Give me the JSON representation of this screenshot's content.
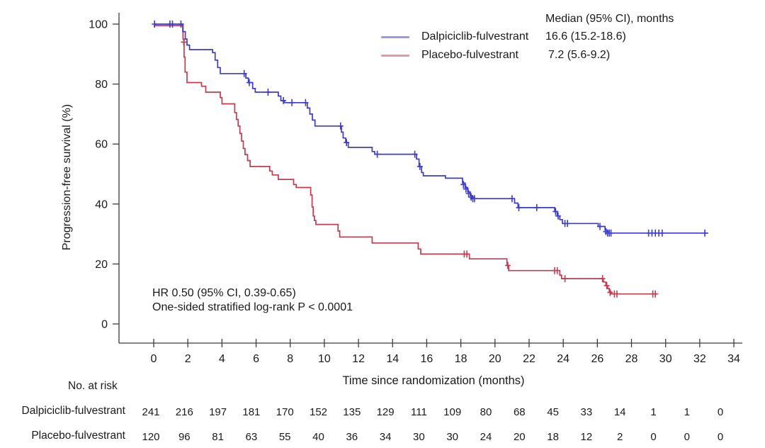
{
  "colors": {
    "dalpiciclib": "#3b3bd1",
    "placebo": "#c23b4e",
    "dalpiciclib_legend": "#9b9be4",
    "placebo_legend": "#e49aa3",
    "axis": "#3c3c3c",
    "text": "#1a1a1a"
  },
  "legend": {
    "header": "Median (95% CI), months",
    "series": [
      {
        "label": "Dalpiciclib-fulvestrant",
        "median": "16.6 (15.2-18.6)"
      },
      {
        "label": "Placebo-fulvestrant",
        "median": "7.2 (5.6-9.2)"
      }
    ]
  },
  "annotation": {
    "line1": "HR 0.50 (95% CI, 0.39-0.65)",
    "line2": "One-sided stratified log-rank P < 0.0001"
  },
  "risk_table": {
    "title": "No. at risk",
    "rows": [
      {
        "label": "Dalpiciclib-fulvestrant",
        "counts": [
          241,
          216,
          197,
          181,
          170,
          152,
          135,
          129,
          111,
          109,
          80,
          68,
          45,
          33,
          14,
          1,
          1,
          0
        ]
      },
      {
        "label": "Placebo-fulvestrant",
        "counts": [
          120,
          96,
          81,
          63,
          55,
          40,
          36,
          34,
          30,
          30,
          24,
          20,
          18,
          12,
          2,
          0,
          0,
          0
        ]
      }
    ]
  },
  "chart_data": {
    "type": "line",
    "subtype": "kaplan-meier-step",
    "title": "",
    "xlabel": "Time since randomization (months)",
    "ylabel": "Progression-free survival (%)",
    "xlim": [
      0,
      34
    ],
    "ylim": [
      0,
      100
    ],
    "xticks": [
      0,
      2,
      4,
      6,
      8,
      10,
      12,
      14,
      16,
      18,
      20,
      22,
      24,
      26,
      28,
      30,
      32,
      34
    ],
    "yticks": [
      0,
      20,
      40,
      60,
      80,
      100
    ],
    "grid": false,
    "legend_position": "top-right",
    "series": [
      {
        "name": "Dalpiciclib-fulvestrant",
        "color_key": "dalpiciclib",
        "steps": [
          [
            0,
            100
          ],
          [
            1.7,
            97.5
          ],
          [
            1.85,
            95
          ],
          [
            1.95,
            93
          ],
          [
            2.1,
            91.5
          ],
          [
            3.45,
            90.5
          ],
          [
            3.6,
            88
          ],
          [
            3.75,
            85.5
          ],
          [
            3.9,
            83.5
          ],
          [
            5.4,
            82
          ],
          [
            5.55,
            80.5
          ],
          [
            5.8,
            78.5
          ],
          [
            5.95,
            77.3
          ],
          [
            7.3,
            76
          ],
          [
            7.45,
            74.5
          ],
          [
            7.65,
            73.8
          ],
          [
            9.0,
            72
          ],
          [
            9.15,
            70
          ],
          [
            9.3,
            68
          ],
          [
            9.45,
            66
          ],
          [
            11.0,
            64
          ],
          [
            11.1,
            62
          ],
          [
            11.25,
            60.5
          ],
          [
            11.4,
            58.9
          ],
          [
            12.8,
            57.5
          ],
          [
            12.95,
            56.6
          ],
          [
            15.4,
            55
          ],
          [
            15.55,
            52.5
          ],
          [
            15.7,
            50.5
          ],
          [
            15.8,
            49.4
          ],
          [
            17.1,
            48.6
          ],
          [
            18.1,
            47
          ],
          [
            18.25,
            45.5
          ],
          [
            18.4,
            44
          ],
          [
            18.55,
            42.8
          ],
          [
            18.65,
            41.8
          ],
          [
            21.15,
            40.3
          ],
          [
            21.35,
            38.8
          ],
          [
            23.5,
            37.5
          ],
          [
            23.65,
            36
          ],
          [
            23.8,
            34.8
          ],
          [
            23.95,
            33.5
          ],
          [
            26.05,
            32.5
          ],
          [
            26.45,
            31.3
          ],
          [
            26.6,
            30.3
          ],
          [
            32.5,
            30.3
          ]
        ],
        "censors": [
          [
            0.05,
            100
          ],
          [
            0.95,
            100
          ],
          [
            1.1,
            100
          ],
          [
            1.6,
            100
          ],
          [
            5.3,
            83.5
          ],
          [
            5.6,
            80.5
          ],
          [
            6.7,
            77.3
          ],
          [
            7.6,
            74.5
          ],
          [
            8.1,
            73.8
          ],
          [
            8.9,
            73.8
          ],
          [
            10.95,
            66
          ],
          [
            11.3,
            60.5
          ],
          [
            13.1,
            56.6
          ],
          [
            15.3,
            56.6
          ],
          [
            15.6,
            52.5
          ],
          [
            18.15,
            46.5
          ],
          [
            18.3,
            45
          ],
          [
            18.45,
            43.5
          ],
          [
            18.6,
            42.3
          ],
          [
            18.7,
            41.8
          ],
          [
            18.8,
            41.8
          ],
          [
            21.0,
            41.8
          ],
          [
            21.4,
            38.8
          ],
          [
            22.45,
            38.8
          ],
          [
            23.55,
            37.5
          ],
          [
            23.7,
            36
          ],
          [
            24.1,
            33.5
          ],
          [
            24.25,
            33.5
          ],
          [
            26.15,
            32.5
          ],
          [
            26.5,
            30.8
          ],
          [
            26.6,
            30.3
          ],
          [
            26.7,
            30.3
          ],
          [
            26.8,
            30.3
          ],
          [
            29.0,
            30.3
          ],
          [
            29.2,
            30.3
          ],
          [
            29.4,
            30.3
          ],
          [
            29.6,
            30.3
          ],
          [
            29.8,
            30.3
          ],
          [
            32.3,
            30.3
          ]
        ]
      },
      {
        "name": "Placebo-fulvestrant",
        "color_key": "placebo",
        "steps": [
          [
            0,
            99.5
          ],
          [
            1.72,
            95
          ],
          [
            1.78,
            89
          ],
          [
            1.84,
            84
          ],
          [
            1.95,
            80.5
          ],
          [
            2.8,
            79.3
          ],
          [
            3.05,
            77.3
          ],
          [
            3.9,
            75.5
          ],
          [
            4.0,
            73.4
          ],
          [
            4.75,
            70.5
          ],
          [
            4.85,
            68.2
          ],
          [
            4.95,
            66
          ],
          [
            5.05,
            63.5
          ],
          [
            5.15,
            61
          ],
          [
            5.25,
            58.5
          ],
          [
            5.35,
            56.5
          ],
          [
            5.5,
            54.5
          ],
          [
            5.65,
            52.5
          ],
          [
            6.8,
            51
          ],
          [
            6.95,
            49.7
          ],
          [
            7.3,
            48.2
          ],
          [
            8.2,
            46.5
          ],
          [
            8.35,
            45.5
          ],
          [
            9.2,
            43
          ],
          [
            9.28,
            39
          ],
          [
            9.35,
            36
          ],
          [
            9.42,
            34.5
          ],
          [
            9.5,
            33.2
          ],
          [
            10.8,
            31
          ],
          [
            10.9,
            29
          ],
          [
            12.8,
            27
          ],
          [
            15.5,
            25
          ],
          [
            15.65,
            23.3
          ],
          [
            18.5,
            21.7
          ],
          [
            20.7,
            19.5
          ],
          [
            20.8,
            17.8
          ],
          [
            23.8,
            16.3
          ],
          [
            23.9,
            15.1
          ],
          [
            26.35,
            14
          ],
          [
            26.5,
            12.8
          ],
          [
            26.6,
            11.8
          ],
          [
            26.7,
            10.8
          ],
          [
            26.8,
            10
          ],
          [
            29.45,
            10
          ]
        ],
        "censors": [
          [
            1.76,
            94
          ],
          [
            18.2,
            23.3
          ],
          [
            18.35,
            23.3
          ],
          [
            20.75,
            19.5
          ],
          [
            23.5,
            17.8
          ],
          [
            23.65,
            17.8
          ],
          [
            24.1,
            15.1
          ],
          [
            26.3,
            15.1
          ],
          [
            26.55,
            12.8
          ],
          [
            26.75,
            10.5
          ],
          [
            27.0,
            10
          ],
          [
            27.15,
            10
          ],
          [
            29.25,
            10
          ],
          [
            29.4,
            10
          ]
        ]
      }
    ]
  }
}
